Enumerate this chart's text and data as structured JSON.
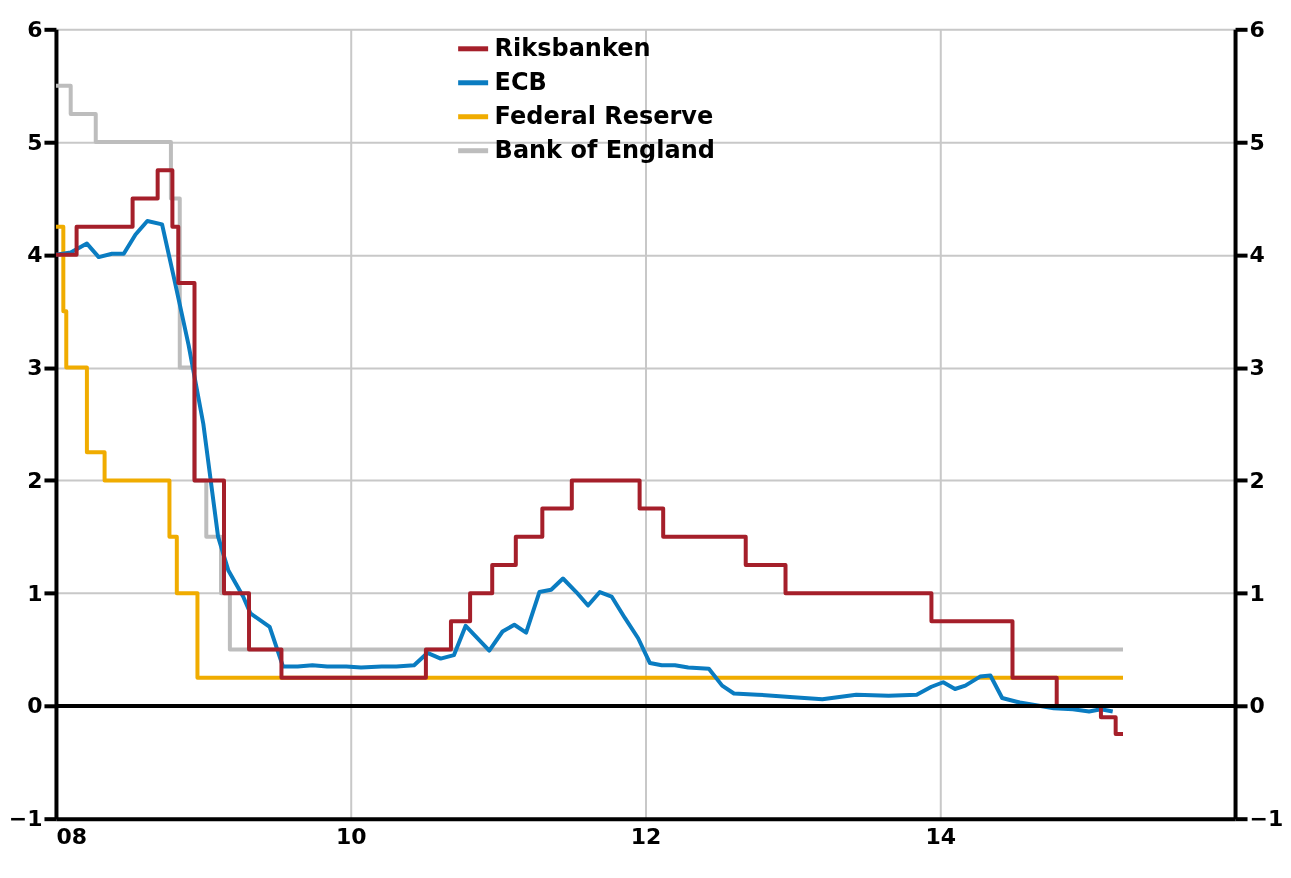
{
  "chart_data": {
    "type": "line",
    "xlim": [
      2008,
      2016
    ],
    "xticks": [
      {
        "value": 2008,
        "label": "08"
      },
      {
        "value": 2010,
        "label": "10"
      },
      {
        "value": 2012,
        "label": "12"
      },
      {
        "value": 2014,
        "label": "14"
      }
    ],
    "ylim": [
      -1,
      6
    ],
    "yticks": [
      -1,
      0,
      1,
      2,
      3,
      4,
      5,
      6
    ],
    "y2lim": [
      -1,
      6
    ],
    "y2ticks": [
      -1,
      0,
      1,
      2,
      3,
      4,
      5,
      6
    ],
    "grid": true,
    "legend": "top",
    "ref_lines": [
      {
        "axis": "y2",
        "value": 0,
        "color": "#000000"
      }
    ],
    "series": [
      {
        "name": "Riksbanken",
        "type": "step",
        "color": "#a51f2a",
        "x": [
          2008.0,
          2008.14,
          2008.52,
          2008.69,
          2008.79,
          2008.83,
          2008.94,
          2009.14,
          2009.31,
          2009.53,
          2010.51,
          2010.68,
          2010.81,
          2010.96,
          2011.12,
          2011.3,
          2011.5,
          2011.96,
          2012.12,
          2012.68,
          2012.95,
          2013.94,
          2014.49,
          2014.79,
          2015.09,
          2015.19,
          2015.24
        ],
        "values": [
          4.0,
          4.25,
          4.5,
          4.75,
          4.25,
          3.75,
          2.0,
          1.0,
          0.5,
          0.25,
          0.5,
          0.75,
          1.0,
          1.25,
          1.5,
          1.75,
          2.0,
          1.75,
          1.5,
          1.25,
          1.0,
          0.75,
          0.25,
          0.0,
          -0.1,
          -0.25,
          -0.25
        ]
      },
      {
        "name": "ECB",
        "color": "#0a7cc1",
        "x": [
          2008.0,
          2008.1,
          2008.21,
          2008.29,
          2008.38,
          2008.46,
          2008.54,
          2008.62,
          2008.72,
          2008.8,
          2008.9,
          2009.0,
          2009.1,
          2009.17,
          2009.27,
          2009.32,
          2009.45,
          2009.54,
          2009.64,
          2009.74,
          2009.84,
          2009.97,
          2010.07,
          2010.21,
          2010.31,
          2010.43,
          2010.52,
          2010.61,
          2010.7,
          2010.78,
          2010.94,
          2011.03,
          2011.11,
          2011.19,
          2011.28,
          2011.36,
          2011.44,
          2011.53,
          2011.61,
          2011.69,
          2011.77,
          2011.86,
          2011.95,
          2012.03,
          2012.11,
          2012.2,
          2012.29,
          2012.43,
          2012.52,
          2012.6,
          2012.76,
          2012.98,
          2013.2,
          2013.43,
          2013.65,
          2013.84,
          2013.94,
          2014.02,
          2014.1,
          2014.17,
          2014.27,
          2014.34,
          2014.42,
          2014.54,
          2014.68,
          2014.77,
          2014.9,
          2015.01,
          2015.09,
          2015.17
        ],
        "values": [
          4.0,
          4.02,
          4.1,
          3.98,
          4.01,
          4.01,
          4.18,
          4.3,
          4.27,
          3.8,
          3.2,
          2.5,
          1.5,
          1.2,
          0.97,
          0.82,
          0.7,
          0.35,
          0.35,
          0.36,
          0.35,
          0.35,
          0.34,
          0.35,
          0.35,
          0.36,
          0.47,
          0.42,
          0.45,
          0.71,
          0.49,
          0.66,
          0.72,
          0.65,
          1.01,
          1.03,
          1.13,
          1.01,
          0.89,
          1.01,
          0.97,
          0.78,
          0.6,
          0.38,
          0.36,
          0.36,
          0.34,
          0.33,
          0.18,
          0.11,
          0.1,
          0.08,
          0.06,
          0.1,
          0.09,
          0.1,
          0.17,
          0.21,
          0.15,
          0.18,
          0.26,
          0.27,
          0.07,
          0.03,
          0.0,
          -0.02,
          -0.03,
          -0.05,
          -0.03,
          -0.05
        ]
      },
      {
        "name": "Federal Reserve",
        "type": "step",
        "color": "#f0ac00",
        "x": [
          2008.0,
          2008.05,
          2008.07,
          2008.21,
          2008.33,
          2008.77,
          2008.82,
          2008.96,
          2015.24
        ],
        "values": [
          4.25,
          3.5,
          3.0,
          2.25,
          2.0,
          1.5,
          1.0,
          0.25,
          0.25
        ]
      },
      {
        "name": "Bank of England",
        "type": "step",
        "color": "#bdbdbd",
        "x": [
          2008.0,
          2008.1,
          2008.27,
          2008.78,
          2008.84,
          2008.94,
          2009.02,
          2009.12,
          2009.18,
          2015.24
        ],
        "values": [
          5.5,
          5.25,
          5.0,
          4.5,
          3.0,
          2.0,
          1.5,
          1.0,
          0.5,
          0.5
        ]
      }
    ]
  }
}
